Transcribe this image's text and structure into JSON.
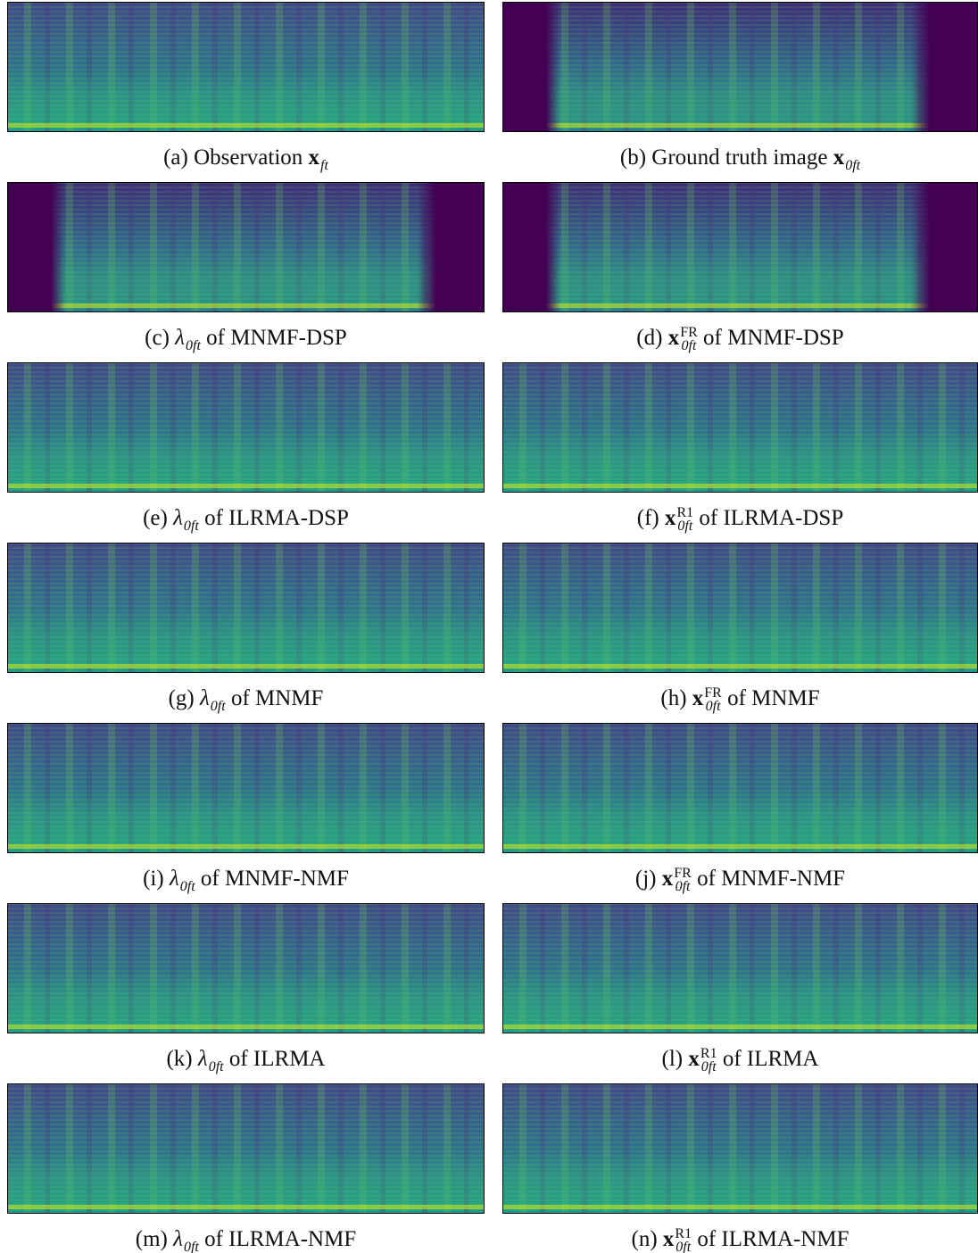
{
  "panels": [
    {
      "caption": [
        {
          "text": "(a) Observation "
        },
        {
          "symbol": "x",
          "sub": "ft"
        }
      ]
    },
    {
      "caption": [
        {
          "text": "(b) Ground truth image "
        },
        {
          "symbol": "x",
          "sub": "0ft"
        }
      ]
    },
    {
      "caption": [
        {
          "text": "(c) "
        },
        {
          "symbol": "λ",
          "italic": true,
          "sub": "0ft"
        },
        {
          "text": " of MNMF-DSP"
        }
      ]
    },
    {
      "caption": [
        {
          "text": "(d) "
        },
        {
          "symbol": "x",
          "sup": "FR",
          "sub": "0ft"
        },
        {
          "text": " of MNMF-DSP"
        }
      ]
    },
    {
      "caption": [
        {
          "text": "(e) "
        },
        {
          "symbol": "λ",
          "italic": true,
          "sub": "0ft"
        },
        {
          "text": " of ILRMA-DSP"
        }
      ]
    },
    {
      "caption": [
        {
          "text": "(f) "
        },
        {
          "symbol": "x",
          "sup": "R1",
          "sub": "0ft"
        },
        {
          "text": " of ILRMA-DSP"
        }
      ]
    },
    {
      "caption": [
        {
          "text": "(g) "
        },
        {
          "symbol": "λ",
          "italic": true,
          "sub": "0ft"
        },
        {
          "text": " of MNMF"
        }
      ]
    },
    {
      "caption": [
        {
          "text": "(h) "
        },
        {
          "symbol": "x",
          "sup": "FR",
          "sub": "0ft"
        },
        {
          "text": " of MNMF"
        }
      ]
    },
    {
      "caption": [
        {
          "text": "(i) "
        },
        {
          "symbol": "λ",
          "italic": true,
          "sub": "0ft"
        },
        {
          "text": " of MNMF-NMF"
        }
      ]
    },
    {
      "caption": [
        {
          "text": "(j) "
        },
        {
          "symbol": "x",
          "sup": "FR",
          "sub": "0ft"
        },
        {
          "text": " of MNMF-NMF"
        }
      ]
    },
    {
      "caption": [
        {
          "text": "(k) "
        },
        {
          "symbol": "λ",
          "italic": true,
          "sub": "0ft"
        },
        {
          "text": " of ILRMA"
        }
      ]
    },
    {
      "caption": [
        {
          "text": "(l) "
        },
        {
          "symbol": "x",
          "sup": "R1",
          "sub": "0ft"
        },
        {
          "text": " of ILRMA"
        }
      ]
    },
    {
      "caption": [
        {
          "text": "(m) "
        },
        {
          "symbol": "λ",
          "italic": true,
          "sub": "0ft"
        },
        {
          "text": " of ILRMA-NMF"
        }
      ]
    },
    {
      "caption": [
        {
          "text": "(n) "
        },
        {
          "symbol": "x",
          "sup": "R1",
          "sub": "0ft"
        },
        {
          "text": " of ILRMA-NMF"
        }
      ]
    }
  ]
}
